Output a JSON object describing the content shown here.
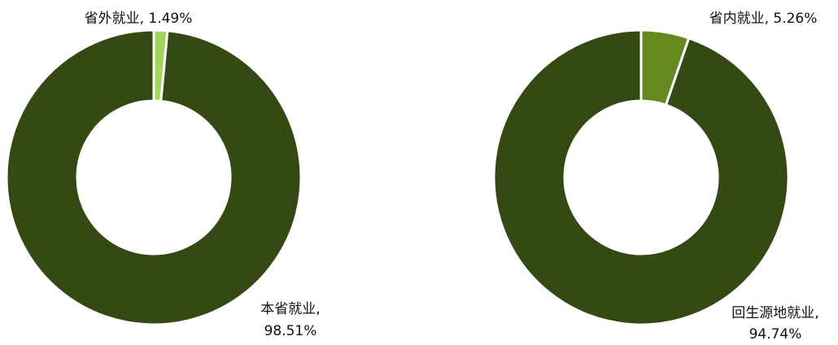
{
  "chart_data": [
    {
      "type": "pie",
      "donut": true,
      "start_angle_deg": 0,
      "direction": "clockwise",
      "slices": [
        {
          "label": "省外就业",
          "value_text": "1.49%",
          "value": 1.49,
          "color": "#a4d65e"
        },
        {
          "label": "本省就业,",
          "value_text": "98.51%",
          "value": 98.51,
          "color": "#344913"
        }
      ]
    },
    {
      "type": "pie",
      "donut": true,
      "start_angle_deg": 0,
      "direction": "clockwise",
      "slices": [
        {
          "label": "省内就业",
          "value_text": "5.26%",
          "value": 5.26,
          "color": "#64891f"
        },
        {
          "label": "回生源地就业,",
          "value_text": "94.74%",
          "value": 94.74,
          "color": "#344913"
        }
      ]
    }
  ]
}
